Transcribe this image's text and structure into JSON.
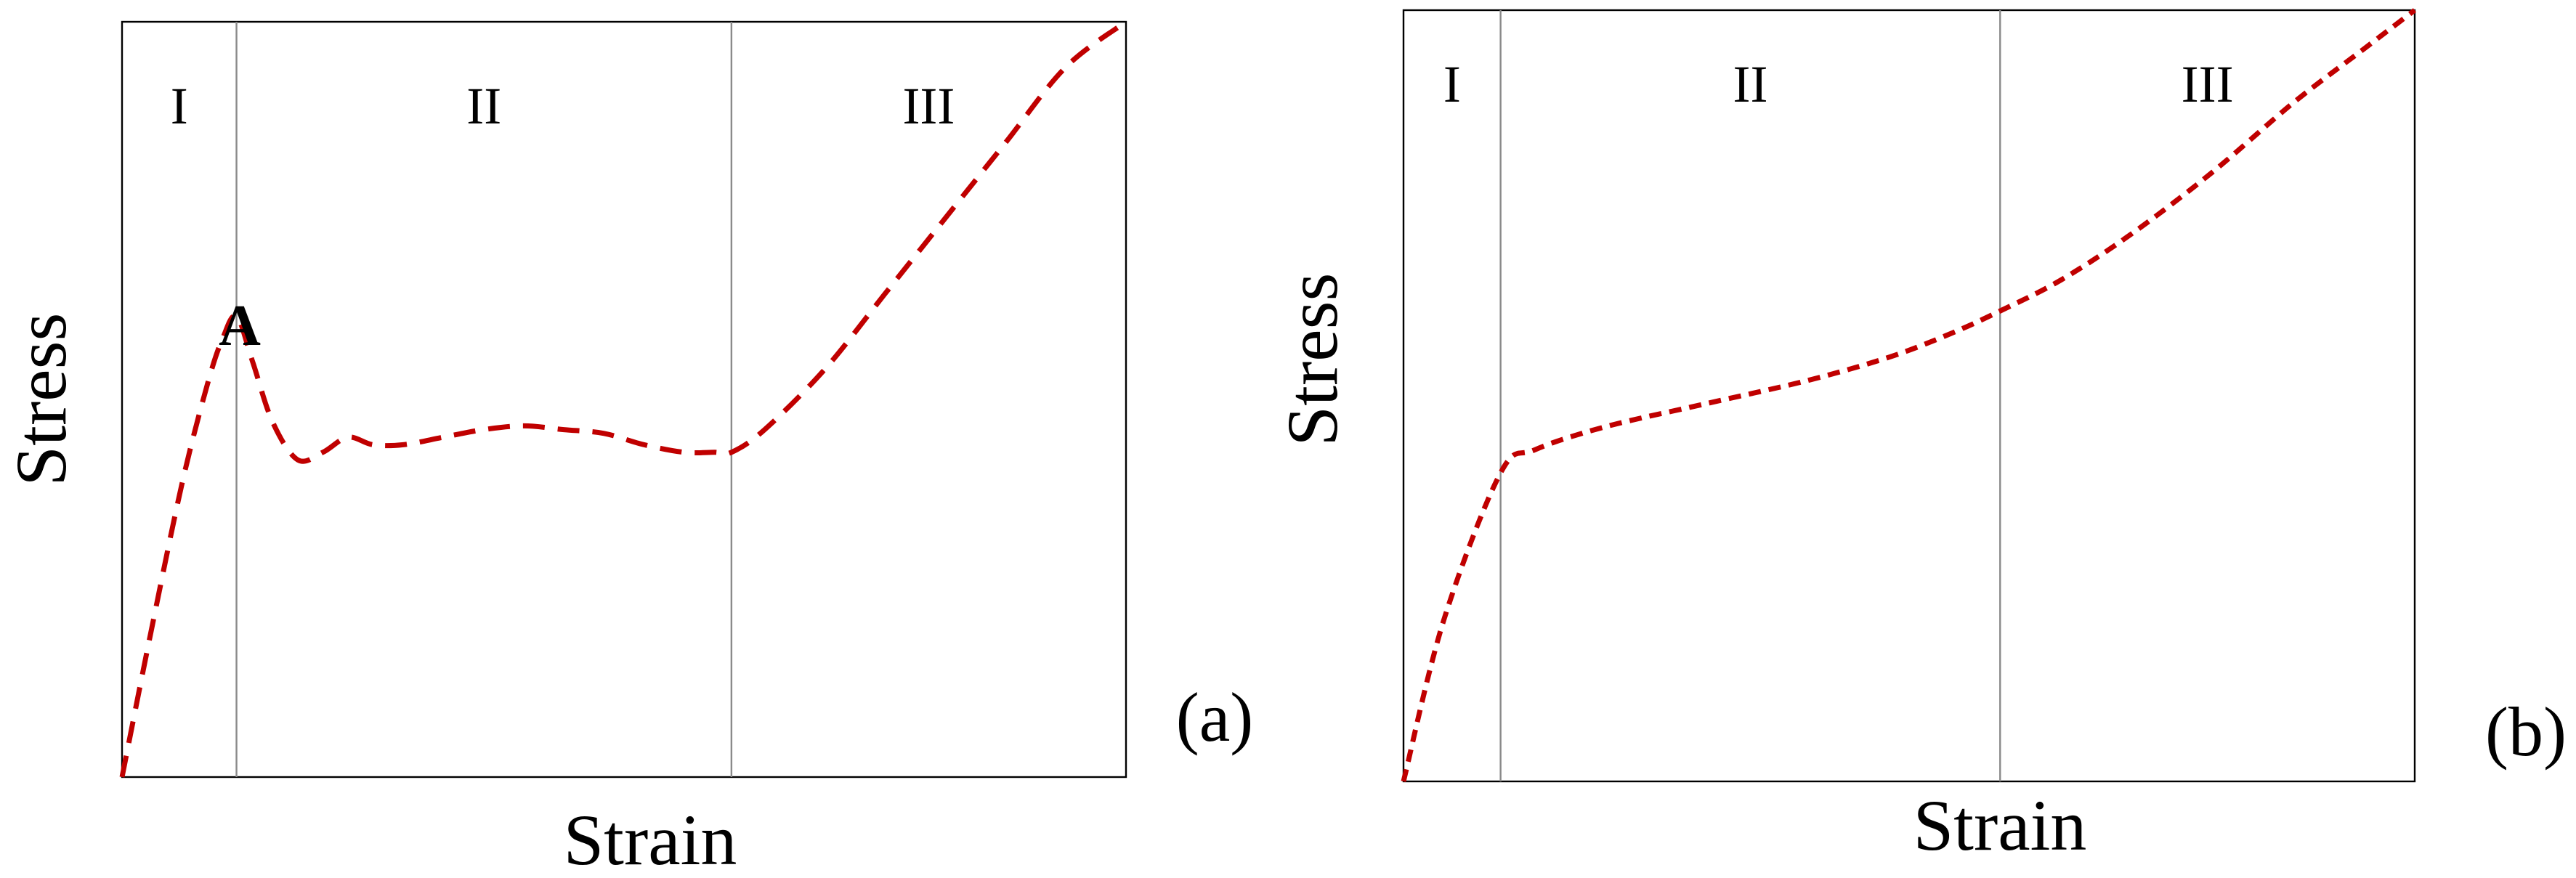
{
  "chart_data": [
    {
      "panel": "(a)",
      "type": "line",
      "xlabel": "Strain",
      "ylabel": "Stress",
      "regions": [
        "I",
        "II",
        "III"
      ],
      "region_bounds": [
        0,
        0.114,
        0.607,
        1
      ],
      "annotation": {
        "text": "A",
        "x": 0.114,
        "y": 0.61
      },
      "ylim": [
        0,
        1
      ],
      "xlim": [
        0,
        1
      ],
      "series": [
        {
          "color": "#c00000",
          "style": "dashed",
          "x": [
            0,
            0.03,
            0.06,
            0.085,
            0.1,
            0.114,
            0.13,
            0.15,
            0.175,
            0.2,
            0.225,
            0.25,
            0.28,
            0.32,
            0.36,
            0.4,
            0.44,
            0.48,
            0.52,
            0.56,
            0.59,
            0.607,
            0.64,
            0.7,
            0.76,
            0.82,
            0.88,
            0.94,
            1.0
          ],
          "y": [
            0,
            0.2,
            0.39,
            0.52,
            0.58,
            0.61,
            0.55,
            0.47,
            0.42,
            0.43,
            0.45,
            0.44,
            0.44,
            0.45,
            0.46,
            0.465,
            0.46,
            0.455,
            0.44,
            0.43,
            0.43,
            0.43,
            0.46,
            0.54,
            0.64,
            0.74,
            0.84,
            0.94,
            1.0
          ]
        }
      ]
    },
    {
      "panel": "(b)",
      "type": "line",
      "xlabel": "Strain",
      "ylabel": "Stress",
      "regions": [
        "I",
        "II",
        "III"
      ],
      "region_bounds": [
        0,
        0.096,
        0.59,
        1
      ],
      "ylim": [
        0,
        1
      ],
      "xlim": [
        0,
        1
      ],
      "series": [
        {
          "color": "#c00000",
          "style": "dashed",
          "x": [
            0,
            0.04,
            0.096,
            0.13,
            0.2,
            0.3,
            0.4,
            0.48,
            0.54,
            0.59,
            0.65,
            0.72,
            0.8,
            0.88,
            0.95,
            1.0
          ],
          "y": [
            0,
            0.21,
            0.4,
            0.43,
            0.46,
            0.49,
            0.52,
            0.55,
            0.58,
            0.61,
            0.65,
            0.71,
            0.79,
            0.88,
            0.95,
            1.0
          ]
        }
      ]
    }
  ]
}
